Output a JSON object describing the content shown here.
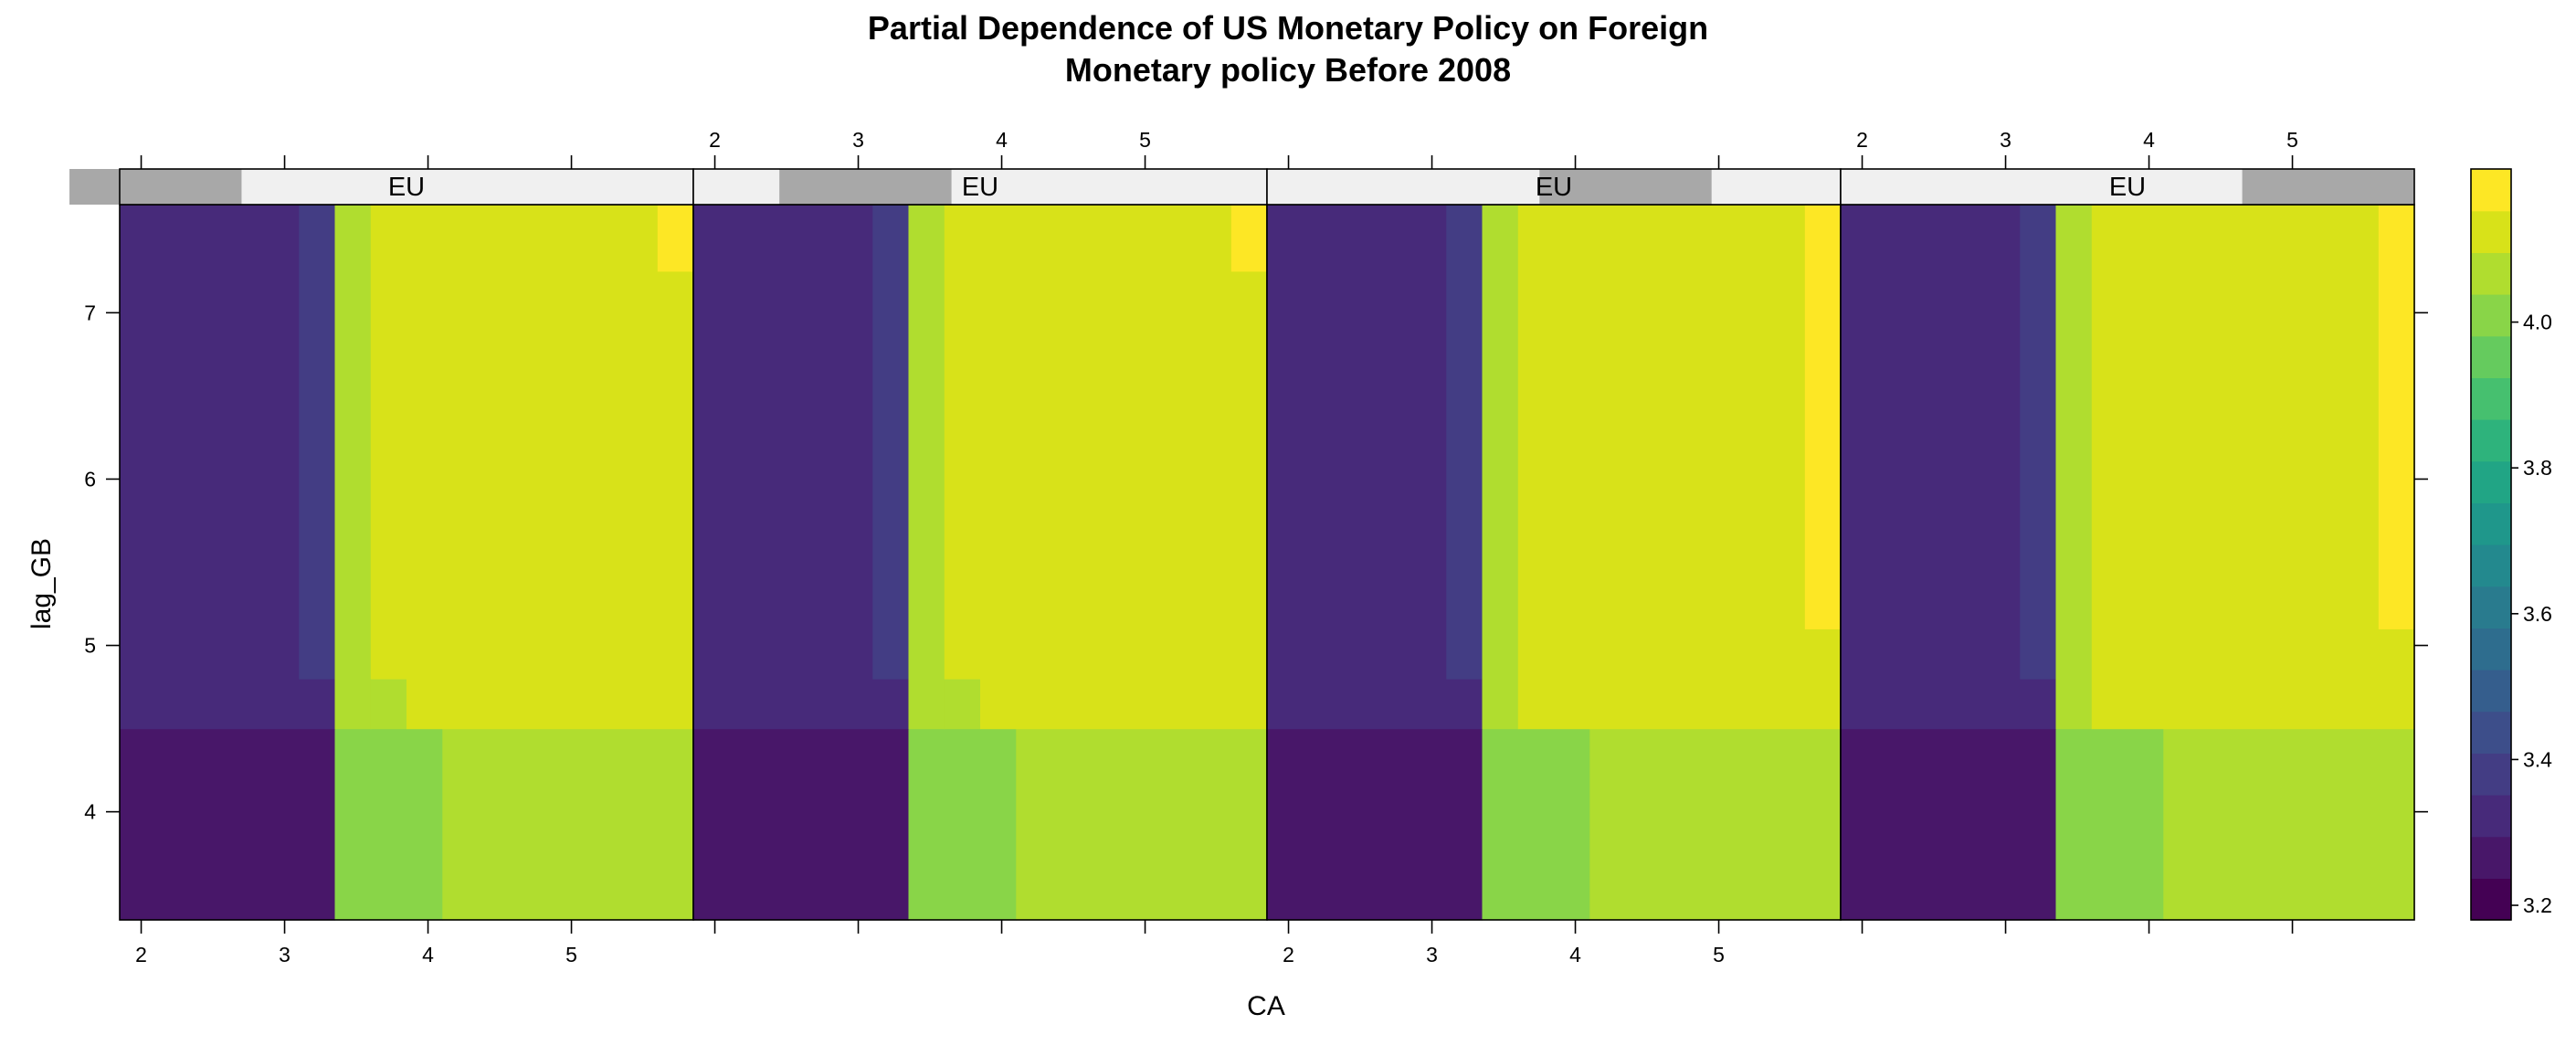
{
  "chart_data": {
    "type": "heatmap",
    "title": [
      "Partial Dependence of US Monetary Policy on Foreign",
      "Monetary policy Before 2008"
    ],
    "xlabel": "CA",
    "ylabel": "lag_GB",
    "xlim": [
      1.85,
      5.85
    ],
    "ylim": [
      3.35,
      7.65
    ],
    "x_ticks": [
      2,
      3,
      4,
      5
    ],
    "y_ticks": [
      4,
      5,
      6,
      7
    ],
    "panel_strip_label": "EU",
    "panels": [
      {
        "strip": "EU",
        "eu_range": [
          1.5,
          2.7
        ],
        "cells": [
          {
            "x": [
              1.85,
              3.35
            ],
            "y": [
              3.35,
              4.5
            ],
            "v": 3.28
          },
          {
            "x": [
              3.35,
              4.1
            ],
            "y": [
              3.35,
              4.5
            ],
            "v": 4.0
          },
          {
            "x": [
              4.1,
              5.85
            ],
            "y": [
              3.35,
              4.5
            ],
            "v": 4.08
          },
          {
            "x": [
              1.85,
              3.35
            ],
            "y": [
              4.5,
              7.65
            ],
            "v": 3.33
          },
          {
            "x": [
              3.1,
              3.35
            ],
            "y": [
              4.8,
              7.65
            ],
            "v": 3.4
          },
          {
            "x": [
              3.35,
              3.6
            ],
            "y": [
              4.5,
              7.65
            ],
            "v": 4.08
          },
          {
            "x": [
              3.6,
              3.85
            ],
            "y": [
              4.5,
              4.8
            ],
            "v": 4.08
          },
          {
            "x": [
              3.6,
              5.85
            ],
            "y": [
              4.8,
              7.65
            ],
            "v": 4.15
          },
          {
            "x": [
              3.85,
              5.85
            ],
            "y": [
              4.5,
              4.8
            ],
            "v": 4.15
          },
          {
            "x": [
              5.6,
              5.85
            ],
            "y": [
              7.25,
              7.65
            ],
            "v": 4.2
          }
        ]
      },
      {
        "strip": "EU",
        "eu_range": [
          2.45,
          3.65
        ],
        "cells": [
          {
            "x": [
              1.85,
              3.35
            ],
            "y": [
              3.35,
              4.5
            ],
            "v": 3.28
          },
          {
            "x": [
              3.35,
              4.1
            ],
            "y": [
              3.35,
              4.5
            ],
            "v": 4.0
          },
          {
            "x": [
              4.1,
              5.85
            ],
            "y": [
              3.35,
              4.5
            ],
            "v": 4.08
          },
          {
            "x": [
              1.85,
              3.35
            ],
            "y": [
              4.5,
              7.65
            ],
            "v": 3.33
          },
          {
            "x": [
              3.1,
              3.35
            ],
            "y": [
              4.8,
              7.65
            ],
            "v": 3.4
          },
          {
            "x": [
              3.35,
              3.6
            ],
            "y": [
              4.5,
              7.65
            ],
            "v": 4.08
          },
          {
            "x": [
              3.6,
              3.85
            ],
            "y": [
              4.5,
              4.8
            ],
            "v": 4.08
          },
          {
            "x": [
              3.6,
              5.85
            ],
            "y": [
              4.8,
              7.65
            ],
            "v": 4.15
          },
          {
            "x": [
              3.85,
              5.85
            ],
            "y": [
              4.5,
              4.8
            ],
            "v": 4.15
          },
          {
            "x": [
              5.6,
              5.85
            ],
            "y": [
              7.25,
              7.65
            ],
            "v": 4.2
          }
        ]
      },
      {
        "strip": "EU",
        "eu_range": [
          3.75,
          4.95
        ],
        "cells": [
          {
            "x": [
              1.85,
              3.35
            ],
            "y": [
              3.35,
              4.5
            ],
            "v": 3.28
          },
          {
            "x": [
              3.35,
              4.1
            ],
            "y": [
              3.35,
              4.5
            ],
            "v": 4.0
          },
          {
            "x": [
              4.1,
              5.85
            ],
            "y": [
              3.35,
              4.5
            ],
            "v": 4.08
          },
          {
            "x": [
              1.85,
              3.35
            ],
            "y": [
              4.5,
              7.65
            ],
            "v": 3.33
          },
          {
            "x": [
              3.1,
              3.35
            ],
            "y": [
              4.8,
              7.65
            ],
            "v": 3.4
          },
          {
            "x": [
              3.35,
              3.6
            ],
            "y": [
              4.5,
              7.65
            ],
            "v": 4.08
          },
          {
            "x": [
              3.6,
              5.85
            ],
            "y": [
              4.5,
              7.65
            ],
            "v": 4.15
          },
          {
            "x": [
              5.6,
              5.85
            ],
            "y": [
              5.1,
              7.65
            ],
            "v": 4.2
          }
        ]
      },
      {
        "strip": "EU",
        "eu_range": [
          4.65,
          5.85
        ],
        "cells": [
          {
            "x": [
              1.85,
              3.35
            ],
            "y": [
              3.35,
              4.5
            ],
            "v": 3.28
          },
          {
            "x": [
              3.35,
              4.1
            ],
            "y": [
              3.35,
              4.5
            ],
            "v": 4.0
          },
          {
            "x": [
              4.1,
              5.85
            ],
            "y": [
              3.35,
              4.5
            ],
            "v": 4.08
          },
          {
            "x": [
              1.85,
              3.35
            ],
            "y": [
              4.5,
              7.65
            ],
            "v": 3.33
          },
          {
            "x": [
              3.1,
              3.35
            ],
            "y": [
              4.8,
              7.65
            ],
            "v": 3.4
          },
          {
            "x": [
              3.35,
              3.6
            ],
            "y": [
              4.5,
              7.65
            ],
            "v": 4.08
          },
          {
            "x": [
              3.6,
              5.85
            ],
            "y": [
              4.5,
              7.65
            ],
            "v": 4.15
          },
          {
            "x": [
              5.6,
              5.85
            ],
            "y": [
              5.1,
              7.65
            ],
            "v": 4.2
          }
        ]
      }
    ],
    "colorbar": {
      "range": [
        3.18,
        4.21
      ],
      "ticks": [
        3.2,
        3.4,
        3.6,
        3.8,
        4.0
      ],
      "tick_labels": [
        "3.2",
        "3.4",
        "3.6",
        "3.8",
        "4.0"
      ],
      "colors": [
        "#440154",
        "#481769",
        "#472A7A",
        "#433D84",
        "#3D4E8A",
        "#355E8D",
        "#2E6D8E",
        "#297B8E",
        "#23898E",
        "#1F978B",
        "#21A585",
        "#2EB37C",
        "#46C06F",
        "#65CB5E",
        "#89D548",
        "#B0DD2F",
        "#D8E219",
        "#FDE725"
      ]
    },
    "strip_bg": "#F0F0F0",
    "strip_shade": "#A8A8A8"
  }
}
